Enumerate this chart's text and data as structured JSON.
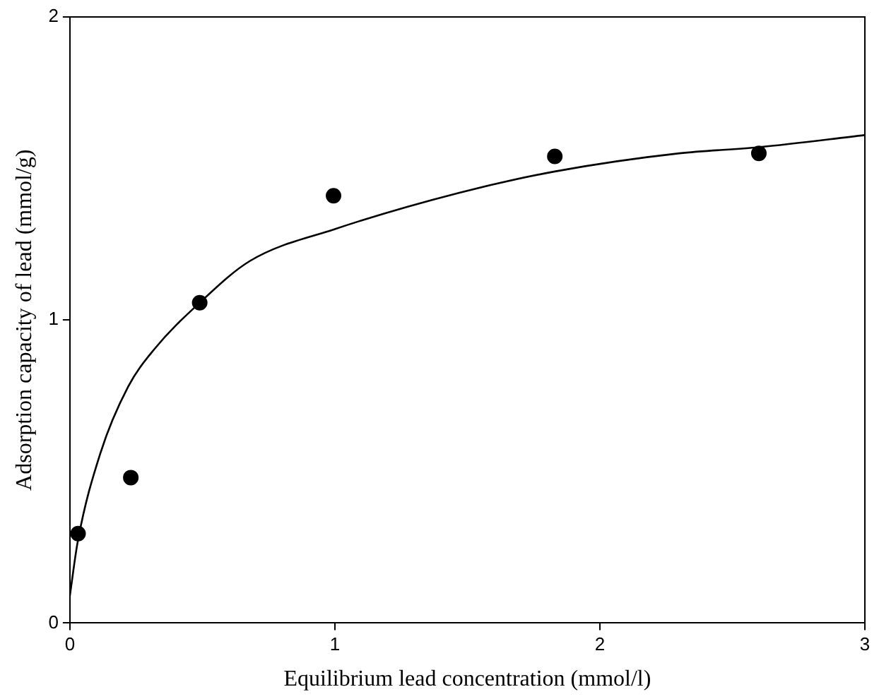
{
  "chart_data": {
    "type": "scatter",
    "xlabel": "Equilibrium lead concentration (mmol/l)",
    "ylabel": "Adsorption capacity of lead (mmol/g)",
    "xlim": [
      0,
      3
    ],
    "xticks": [
      0,
      1,
      2,
      3
    ],
    "ylim": [
      0,
      2
    ],
    "yticks": [
      0,
      1,
      2
    ],
    "grid": false,
    "legend": false,
    "series": [
      {
        "color": "#000000",
        "marker": "circle",
        "x": [
          0.031,
          0.23,
          0.49,
          0.995,
          1.83,
          2.6
        ],
        "values": [
          0.295,
          0.48,
          1.057,
          1.41,
          1.54,
          1.55
        ]
      },
      {
        "type": "line",
        "color": "#000000",
        "marker": "none",
        "line_style": "solid",
        "x": [
          0,
          0.03,
          0.115,
          0.22,
          0.32,
          0.49,
          0.68,
          1.0,
          1.47,
          1.83,
          2.3,
          2.6,
          3.0
        ],
        "values": [
          0.09,
          0.27,
          0.56,
          0.78,
          0.905,
          1.057,
          1.195,
          1.3,
          1.42,
          1.49,
          1.55,
          1.57,
          1.61
        ]
      }
    ]
  }
}
